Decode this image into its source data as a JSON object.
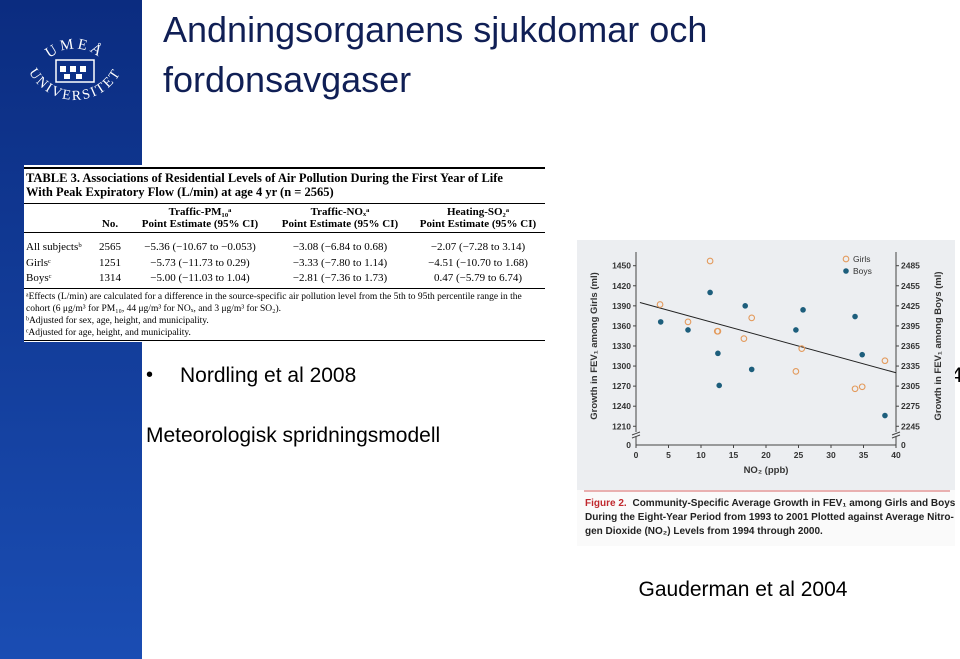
{
  "logo": {
    "top": "UMEÅ",
    "ring": "UNIVERSITET"
  },
  "title": [
    "Andningsorganens sjukdomar och",
    "fordonsavgaser"
  ],
  "table": {
    "title": [
      "TABLE 3.  Associations of Residential Levels of Air Pollution During the First Year of Life",
      "With Peak Expiratory Flow (L/min) at age 4 yr (n = 2565)"
    ],
    "groups": [
      "Traffic-PM₁₀ᵃ",
      "Traffic-NOₓᵃ",
      "Heating-SO₂ᵃ"
    ],
    "columns": [
      "No.",
      "Point Estimate (95% CI)",
      "Point Estimate (95% CI)",
      "Point Estimate (95% CI)"
    ],
    "rows": [
      [
        "All subjectsᵇ",
        "2565",
        "−5.36 (−10.67 to −0.053)",
        "−3.08 (−6.84 to 0.68)",
        "−2.07 (−7.28 to 3.14)"
      ],
      [
        "Girlsᶜ",
        "1251",
        "−5.73 (−11.73 to 0.29)",
        "−3.33 (−7.80 to 1.14)",
        "−4.51 (−10.70 to 1.68)"
      ],
      [
        "Boysᶜ",
        "1314",
        "−5.00 (−11.03 to 1.04)",
        "−2.81 (−7.36 to 1.73)",
        "0.47 (−5.79 to 6.74)"
      ]
    ],
    "footnotes": [
      "ᵃEffects (L/min) are calculated for a difference in the source-specific air pollution level from the 5th to 95th percentile range in the cohort (6 μg/m³ for PM₁₀, 44 μg/m³ for NOₓ, and 3 μg/m³ for SO₂).",
      "ᵇAdjusted for sex, age, height, and municipality.",
      "ᶜAdjusted for age, height, and municipality."
    ]
  },
  "bullets": [
    "Nordling et al 2008"
  ],
  "clipped_text": "4",
  "note": "Meteorologisk spridningsmodell",
  "citation": "Gauderman et al 2004",
  "chart_data": {
    "type": "scatter",
    "x_label": "NO₂ (ppb)",
    "y_label": "Growth in FEV₁ among Girls (ml)",
    "y2_label": "Growth in FEV₁ among Boys (ml)",
    "xlim": [
      0,
      40
    ],
    "xticks": [
      0,
      5,
      10,
      15,
      20,
      25,
      30,
      35,
      40
    ],
    "ylim": [
      1182,
      1463
    ],
    "yticks": [
      1210,
      1240,
      1270,
      1300,
      1330,
      1360,
      1390,
      1420,
      1450
    ],
    "y2lim": [
      2217,
      2498
    ],
    "y2ticks": [
      2245,
      2275,
      2305,
      2335,
      2365,
      2395,
      2425,
      2455,
      2485
    ],
    "y_break_label": "0",
    "y2_break_label": "0",
    "legend": "top-right",
    "series": [
      {
        "name": "Girls",
        "color": "#e39a5c",
        "marker": "open",
        "x": [
          3.7,
          8,
          11.4,
          12.5,
          12.6,
          16.6,
          17.8,
          24.6,
          25.5,
          33.7,
          34.8,
          38.3
        ],
        "values": [
          1392,
          1366,
          1457,
          1352,
          1352,
          1341,
          1372,
          1292,
          1326,
          1266,
          1269,
          1308
        ]
      },
      {
        "name": "Boys",
        "color": "#1d5e7c",
        "marker": "filled",
        "axis": "y2",
        "x": [
          3.8,
          8,
          11.4,
          12.6,
          12.8,
          16.8,
          17.8,
          24.6,
          25.7,
          33.7,
          34.8,
          38.3
        ],
        "values": [
          2401,
          2389,
          2445,
          2354,
          2306,
          2425,
          2330,
          2389,
          2419,
          2409,
          2352,
          2261
        ]
      }
    ],
    "trend": {
      "color": "#222222",
      "x": [
        0.6,
        40
      ],
      "values": [
        1395,
        1290
      ]
    }
  },
  "figure_caption": {
    "label": "Figure 2.",
    "lines": [
      "Community-Specific Average Growth in FEV₁ among Girls and Boys",
      "During the Eight-Year Period from 1993 to 2001 Plotted against Average Nitro-",
      "gen Dioxide (NO₂) Levels from 1994 through 2000."
    ]
  }
}
